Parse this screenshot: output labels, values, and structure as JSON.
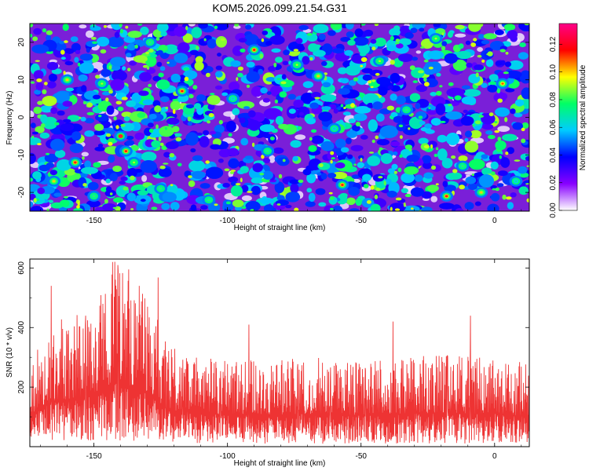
{
  "chart_data": [
    {
      "type": "heatmap",
      "title": "KOM5.2026.099.21.54.G31",
      "xlabel": "Height of straight line (km)",
      "ylabel": "Frequency (Hz)",
      "xlim": [
        -174,
        13
      ],
      "ylim": [
        -25,
        25
      ],
      "x_ticks": [
        "-150",
        "-100",
        "-50",
        "0"
      ],
      "y_ticks": [
        "20",
        "10",
        "0",
        "-10",
        "-20"
      ],
      "colorbar": {
        "label": "Normalized spectral amplitude",
        "range": [
          0,
          0.135
        ],
        "ticks": [
          "0.00",
          "0.02",
          "0.04",
          "0.06",
          "0.08",
          "0.10",
          "0.12"
        ],
        "colors": [
          "#ffffff",
          "#8800ff",
          "#0000ff",
          "#00ccff",
          "#00ff66",
          "#ffff00",
          "#ff0000",
          "#ff0088"
        ]
      },
      "peaks": [
        {
          "x": -160,
          "y": 10,
          "v": 0.1
        },
        {
          "x": -147,
          "y": 9,
          "v": 0.09
        },
        {
          "x": -140,
          "y": -5,
          "v": 0.13
        },
        {
          "x": -138,
          "y": -9,
          "v": 0.12
        },
        {
          "x": -157,
          "y": -12,
          "v": 0.12
        },
        {
          "x": -165,
          "y": -17,
          "v": 0.1
        },
        {
          "x": -129,
          "y": 20,
          "v": 0.08
        },
        {
          "x": -117,
          "y": 7,
          "v": 0.12
        },
        {
          "x": -90,
          "y": 18,
          "v": 0.12
        },
        {
          "x": -74,
          "y": 14,
          "v": 0.09
        },
        {
          "x": -66,
          "y": 11,
          "v": 0.1
        },
        {
          "x": -57,
          "y": -18,
          "v": 0.12
        },
        {
          "x": -43,
          "y": 15,
          "v": 0.09
        },
        {
          "x": -33,
          "y": 2,
          "v": 0.08
        },
        {
          "x": -22,
          "y": 21,
          "v": 0.09
        },
        {
          "x": -18,
          "y": -21,
          "v": 0.12
        },
        {
          "x": -5,
          "y": -20,
          "v": 0.1
        },
        {
          "x": 3,
          "y": 9,
          "v": 0.11
        },
        {
          "x": -107,
          "y": -22,
          "v": 0.08
        },
        {
          "x": -85,
          "y": -9,
          "v": 0.08
        },
        {
          "x": -135,
          "y": -12,
          "v": 0.09
        },
        {
          "x": -125,
          "y": -19,
          "v": 0.08
        },
        {
          "x": -150,
          "y": -21,
          "v": 0.08
        },
        {
          "x": -98,
          "y": 5,
          "v": 0.07
        },
        {
          "x": -60,
          "y": -3,
          "v": 0.07
        },
        {
          "x": -12,
          "y": -13,
          "v": 0.08
        },
        {
          "x": 8,
          "y": -17,
          "v": 0.07
        }
      ]
    },
    {
      "type": "line",
      "xlabel": "Height of straight line (km)",
      "ylabel": "SNR (10 * v/v)",
      "xlim": [
        -174,
        13
      ],
      "ylim": [
        0,
        630
      ],
      "x_ticks": [
        "-150",
        "-100",
        "-50",
        "0"
      ],
      "y_ticks": [
        "600",
        "400",
        "200"
      ],
      "series": [
        {
          "name": "SNR",
          "color": "#ee3333",
          "x_range": [
            -174,
            13
          ],
          "n_points": 1800,
          "baseline": 110,
          "envelope": [
            {
              "x": -174,
              "lo": 30,
              "hi": 300
            },
            {
              "x": -165,
              "lo": 20,
              "hi": 430
            },
            {
              "x": -155,
              "lo": 15,
              "hi": 450
            },
            {
              "x": -148,
              "lo": 20,
              "hi": 500
            },
            {
              "x": -142,
              "lo": 20,
              "hi": 630
            },
            {
              "x": -135,
              "lo": 20,
              "hi": 560
            },
            {
              "x": -128,
              "lo": 15,
              "hi": 470
            },
            {
              "x": -122,
              "lo": 15,
              "hi": 340
            },
            {
              "x": -110,
              "lo": 10,
              "hi": 300
            },
            {
              "x": -90,
              "lo": 10,
              "hi": 290
            },
            {
              "x": -70,
              "lo": 10,
              "hi": 300
            },
            {
              "x": -50,
              "lo": 10,
              "hi": 290
            },
            {
              "x": -35,
              "lo": 10,
              "hi": 300
            },
            {
              "x": -20,
              "lo": 10,
              "hi": 310
            },
            {
              "x": 0,
              "lo": 10,
              "hi": 300
            },
            {
              "x": 13,
              "lo": 10,
              "hi": 280
            }
          ],
          "spikes": [
            {
              "x": -166,
              "y": 540
            },
            {
              "x": -143,
              "y": 620
            },
            {
              "x": -141,
              "y": 610
            },
            {
              "x": -137,
              "y": 595
            },
            {
              "x": -133,
              "y": 540
            },
            {
              "x": -126,
              "y": 568
            },
            {
              "x": -92,
              "y": 410
            },
            {
              "x": -38,
              "y": 420
            },
            {
              "x": -9,
              "y": 440
            }
          ]
        }
      ]
    }
  ]
}
